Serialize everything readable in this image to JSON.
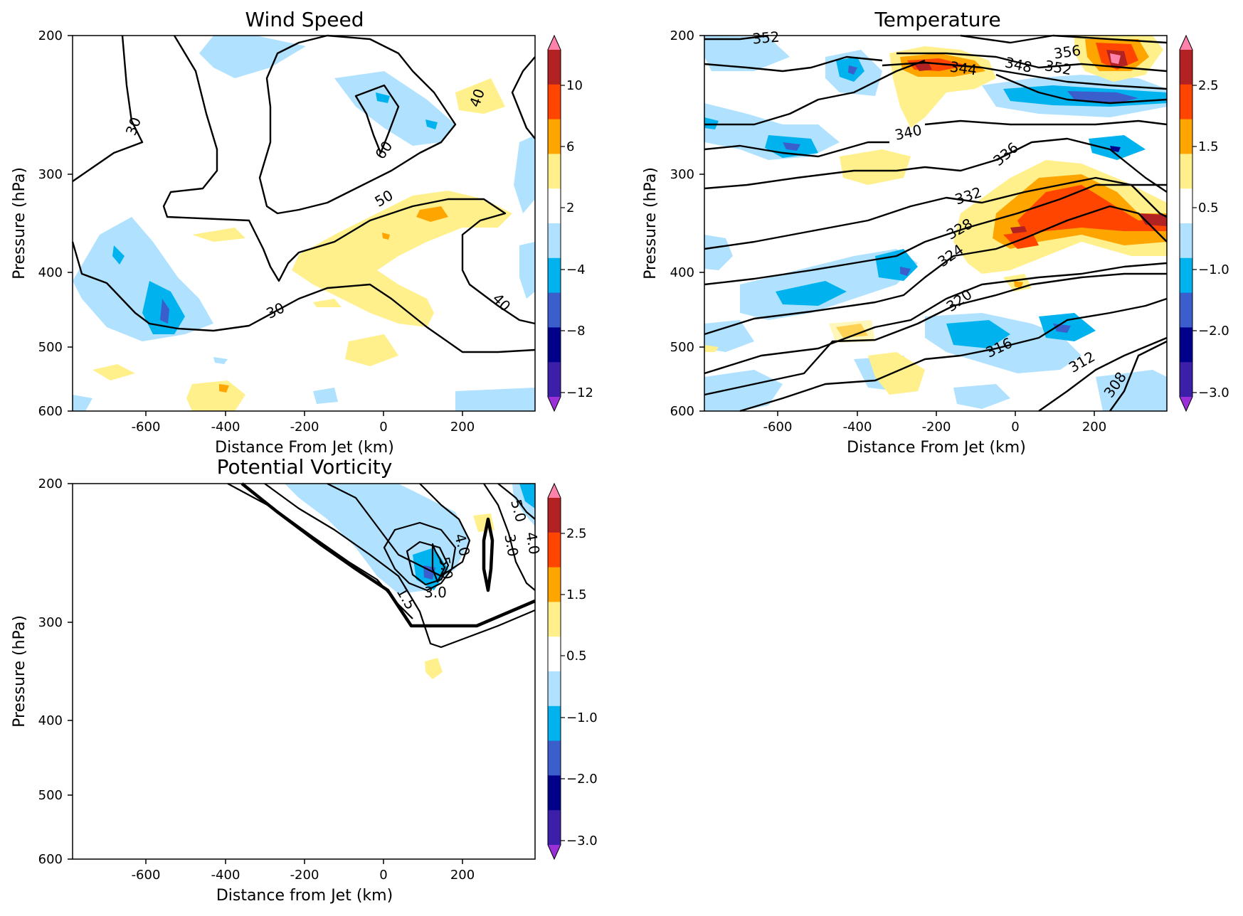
{
  "chart_data": [
    {
      "type": "contour",
      "title": "Wind Speed",
      "xlabel": "Distance From Jet (km)",
      "ylabel": "Pressure (hPa)",
      "xlim": [
        -790,
        390
      ],
      "ylim": [
        600,
        200
      ],
      "y_scale": "log",
      "xticks": [
        -600,
        -400,
        -200,
        0,
        200
      ],
      "yticks": [
        200,
        300,
        400,
        500,
        600
      ],
      "colorbar": {
        "ticks": [
          "−12",
          "−8",
          "−4",
          "2",
          "6",
          "10"
        ],
        "levels": [
          -12,
          -10,
          -8,
          -6,
          -4,
          -2,
          2,
          4,
          6,
          8,
          10,
          12
        ],
        "colors": [
          "#9b30d9",
          "#3b1fa8",
          "#00008b",
          "#3a5fcd",
          "#00b2ee",
          "#b0e2ff",
          "#ffffff",
          "#fff08c",
          "#ffa500",
          "#ff4500",
          "#b22222",
          "#ff82ab"
        ],
        "extend": "both"
      },
      "contour_labels": [
        "30",
        "30",
        "40",
        "40",
        "50",
        "60"
      ]
    },
    {
      "type": "contour",
      "title": "Temperature",
      "xlabel": "Distance From Jet (km)",
      "ylabel": "Pressure (hPa)",
      "xlim": [
        -790,
        390
      ],
      "ylim": [
        600,
        200
      ],
      "y_scale": "log",
      "xticks": [
        -600,
        -400,
        -200,
        0,
        200
      ],
      "yticks": [
        200,
        300,
        400,
        500,
        600
      ],
      "colorbar": {
        "ticks": [
          "−3.0",
          "−2.0",
          "−1.0",
          "0.5",
          "1.5",
          "2.5"
        ],
        "levels": [
          -3.0,
          -2.5,
          -2.0,
          -1.5,
          -1.0,
          -0.5,
          0.5,
          1.0,
          1.5,
          2.0,
          2.5,
          3.0
        ],
        "colors": [
          "#9b30d9",
          "#3b1fa8",
          "#00008b",
          "#3a5fcd",
          "#00b2ee",
          "#b0e2ff",
          "#ffffff",
          "#fff08c",
          "#ffa500",
          "#ff4500",
          "#b22222",
          "#ff82ab"
        ],
        "extend": "both"
      },
      "contour_labels": [
        "308",
        "312",
        "316",
        "320",
        "324",
        "328",
        "332",
        "336",
        "340",
        "344",
        "348",
        "352",
        "352",
        "356"
      ]
    },
    {
      "type": "contour",
      "title": "Potential Vorticity",
      "xlabel": "Distance from Jet (km)",
      "ylabel": "Pressure (hPa)",
      "xlim": [
        -790,
        390
      ],
      "ylim": [
        600,
        200
      ],
      "y_scale": "log",
      "xticks": [
        -600,
        -400,
        -200,
        0,
        200
      ],
      "yticks": [
        200,
        300,
        400,
        500,
        600
      ],
      "colorbar": {
        "ticks": [
          "−3.0",
          "−2.0",
          "−1.0",
          "0.5",
          "1.5",
          "2.5"
        ],
        "levels": [
          -3.0,
          -2.5,
          -2.0,
          -1.5,
          -1.0,
          -0.5,
          0.5,
          1.0,
          1.5,
          2.0,
          2.5,
          3.0
        ],
        "colors": [
          "#9b30d9",
          "#3b1fa8",
          "#00008b",
          "#3a5fcd",
          "#00b2ee",
          "#b0e2ff",
          "#ffffff",
          "#fff08c",
          "#ffa500",
          "#ff4500",
          "#b22222",
          "#ff82ab"
        ],
        "extend": "both"
      },
      "contour_labels": [
        "1.5",
        "3.0",
        "3.0",
        "4.0",
        "4.0",
        "5.0",
        "5.0"
      ]
    }
  ]
}
